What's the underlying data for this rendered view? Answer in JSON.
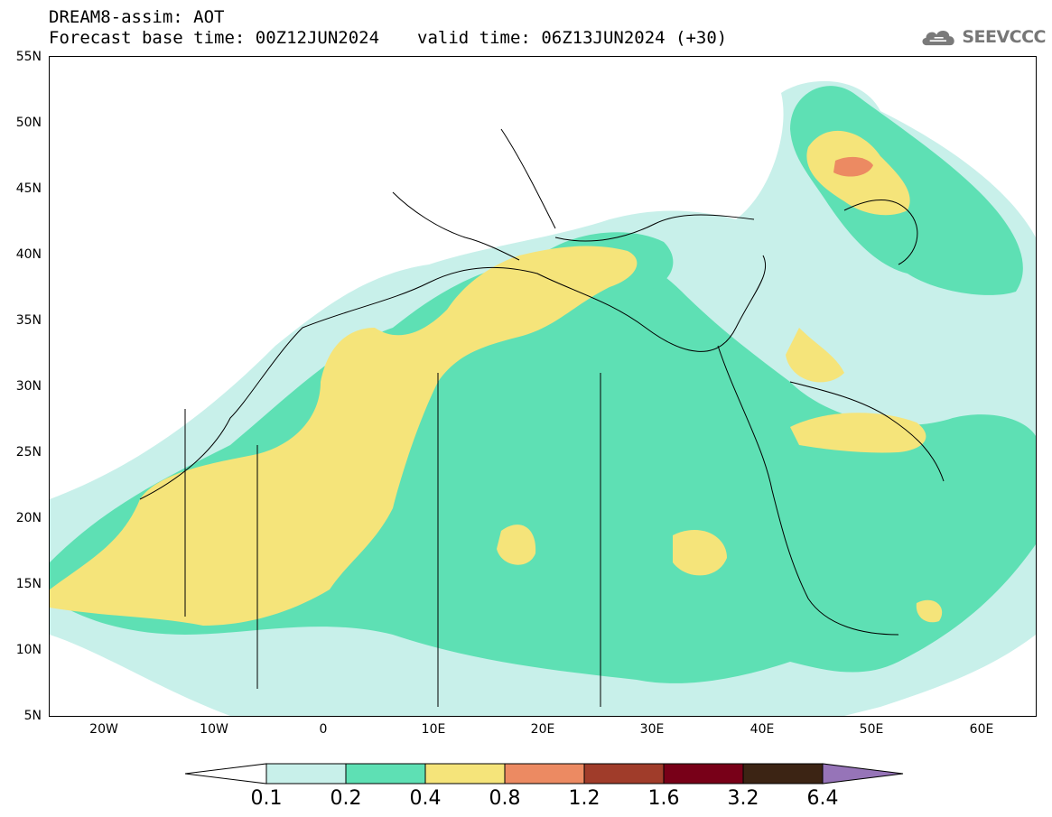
{
  "header": {
    "line1": "DREAM8-assim: AOT",
    "base_time": "Forecast base time: 00Z12JUN2024",
    "valid_time": "valid time: 06Z13JUN2024 (+30)"
  },
  "logo": {
    "text": "SEEVCCC",
    "icon": "cloud-logo-icon"
  },
  "map": {
    "projection": "lat-lon",
    "lon_range": [
      -25,
      65
    ],
    "lat_range": [
      5,
      55
    ],
    "lat_ticks": [
      "55N",
      "50N",
      "45N",
      "40N",
      "35N",
      "30N",
      "25N",
      "20N",
      "15N",
      "10N",
      "5N"
    ],
    "lon_ticks": [
      "20W",
      "10W",
      "0",
      "10E",
      "20E",
      "30E",
      "40E",
      "50E",
      "60E"
    ]
  },
  "colorbar": {
    "labels": [
      "0.1",
      "0.2",
      "0.4",
      "0.8",
      "1.2",
      "1.6",
      "3.2",
      "6.4"
    ],
    "colors": [
      "#c8f0ea",
      "#5ee0b4",
      "#f5e47a",
      "#ec8a62",
      "#a03c2a",
      "#780018",
      "#3c2414",
      "#9674b8"
    ]
  }
}
